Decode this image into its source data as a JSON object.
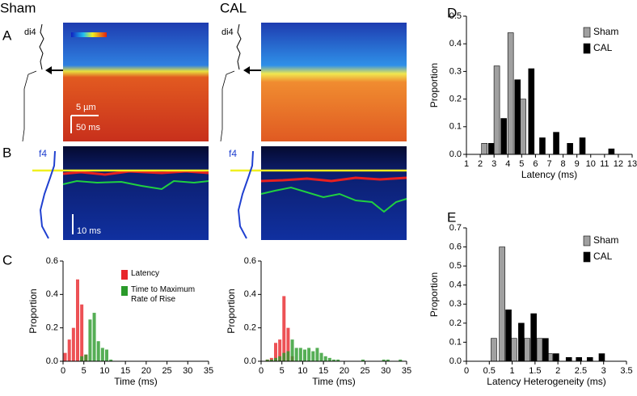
{
  "figure": {
    "groups": [
      "Sham",
      "CAL"
    ],
    "panel_labels": [
      "A",
      "B",
      "C",
      "D",
      "E"
    ],
    "dye_labels": [
      "di4",
      "f4"
    ],
    "scale_bars": [
      "5 µm",
      "50 ms",
      "10 ms"
    ]
  },
  "chart_data": [
    {
      "type": "bar",
      "xlabel": "Time (ms)",
      "ylabel": "Proportion",
      "legend": "upper center",
      "xlim": [
        0,
        35
      ],
      "xticks": [
        0,
        5,
        10,
        15,
        20,
        25,
        30,
        35
      ],
      "ylim": [
        0,
        0.6
      ],
      "yticks": [
        {
          "value": 0,
          "label": "0.0"
        },
        0.2,
        0.4,
        0.6
      ],
      "series": [
        {
          "name": "Latency",
          "color": "#e8262a",
          "x": [
            0.5,
            1.5,
            2.5,
            3.5,
            4.5,
            5.5
          ],
          "values": [
            0.05,
            0.13,
            0.2,
            0.49,
            0.34,
            0.04
          ]
        },
        {
          "name": "Time to Maximum Rate of Rise",
          "color": "#2a9a2a",
          "x": [
            4.5,
            5.5,
            6.5,
            7.5,
            8.5,
            9.5,
            10.5,
            11.5
          ],
          "values": [
            0.03,
            0.04,
            0.25,
            0.29,
            0.12,
            0.08,
            0.07,
            0.01
          ]
        }
      ]
    },
    {
      "type": "bar",
      "xlabel": "Time (ms)",
      "ylabel": "Proportion",
      "xlim": [
        0,
        35
      ],
      "xticks": [
        0,
        5,
        10,
        15,
        20,
        25,
        30,
        35
      ],
      "ylim": [
        0,
        0.6
      ],
      "yticks": [
        {
          "value": 0,
          "label": "0.0"
        },
        0.2,
        0.4,
        0.6
      ],
      "series": [
        {
          "color": "#e8262a",
          "x": [
            1.5,
            2.5,
            3.5,
            4.5,
            5.5,
            6.5,
            7.5
          ],
          "values": [
            0.01,
            0.02,
            0.11,
            0.13,
            0.39,
            0.2,
            0.03
          ]
        },
        {
          "color": "#2a9a2a",
          "x": [
            1.5,
            2.5,
            3.5,
            4.5,
            5.5,
            6.5,
            7.5,
            8.5,
            9.5,
            10.5,
            11.5,
            12.5,
            13.5,
            14.5,
            15.5,
            16.5,
            17.5,
            18.5,
            24.5,
            29.5,
            30.5,
            33.5
          ],
          "values": [
            0.01,
            0.01,
            0.02,
            0.03,
            0.05,
            0.06,
            0.13,
            0.08,
            0.08,
            0.07,
            0.08,
            0.06,
            0.08,
            0.05,
            0.03,
            0.02,
            0.01,
            0.01,
            0.01,
            0.01,
            0.01,
            0.01
          ]
        }
      ]
    },
    {
      "type": "bar",
      "xlabel": "Latency (ms)",
      "ylabel": "Proportion",
      "legend": "upper right",
      "xlim": [
        1,
        13
      ],
      "xticks": [
        1,
        2,
        3,
        4,
        5,
        6,
        7,
        8,
        9,
        10,
        11,
        12,
        13
      ],
      "ylim": [
        0,
        0.5
      ],
      "yticks": [
        {
          "value": 0,
          "label": "0.0"
        },
        0.1,
        0.2,
        0.3,
        0.4,
        0.5
      ],
      "series": [
        {
          "name": "Sham",
          "color": "#a0a0a0",
          "x": [
            2.3,
            3.2,
            4.2,
            5.1
          ],
          "values": [
            0.04,
            0.32,
            0.44,
            0.2
          ]
        },
        {
          "name": "CAL",
          "color": "#000000",
          "x": [
            2.8,
            3.7,
            4.7,
            5.7,
            6.5,
            7.5,
            8.5,
            9.4,
            11.5
          ],
          "values": [
            0.04,
            0.13,
            0.27,
            0.31,
            0.06,
            0.08,
            0.04,
            0.06,
            0.02
          ]
        }
      ]
    },
    {
      "type": "bar",
      "xlabel": "Latency Heterogeneity (ms)",
      "ylabel": "Proportion",
      "legend": "upper right",
      "xlim": [
        0,
        3.5
      ],
      "xticks": [
        0,
        0.5,
        1,
        1.5,
        2,
        2.5,
        3,
        3.5
      ],
      "ylim": [
        0,
        0.7
      ],
      "yticks": [
        {
          "value": 0,
          "label": "0.0"
        },
        0.1,
        0.2,
        0.3,
        0.4,
        0.5,
        0.6,
        0.7
      ],
      "series": [
        {
          "name": "Sham",
          "color": "#a0a0a0",
          "x": [
            0.6,
            0.78,
            1.04,
            1.33,
            1.6,
            1.82
          ],
          "values": [
            0.12,
            0.6,
            0.12,
            0.12,
            0.12,
            0.04
          ]
        },
        {
          "name": "CAL",
          "color": "#000000",
          "x": [
            0.92,
            1.2,
            1.47,
            1.73,
            1.96,
            2.24,
            2.46,
            2.7,
            2.96
          ],
          "values": [
            0.27,
            0.2,
            0.25,
            0.12,
            0.04,
            0.02,
            0.02,
            0.02,
            0.04
          ]
        }
      ]
    }
  ]
}
